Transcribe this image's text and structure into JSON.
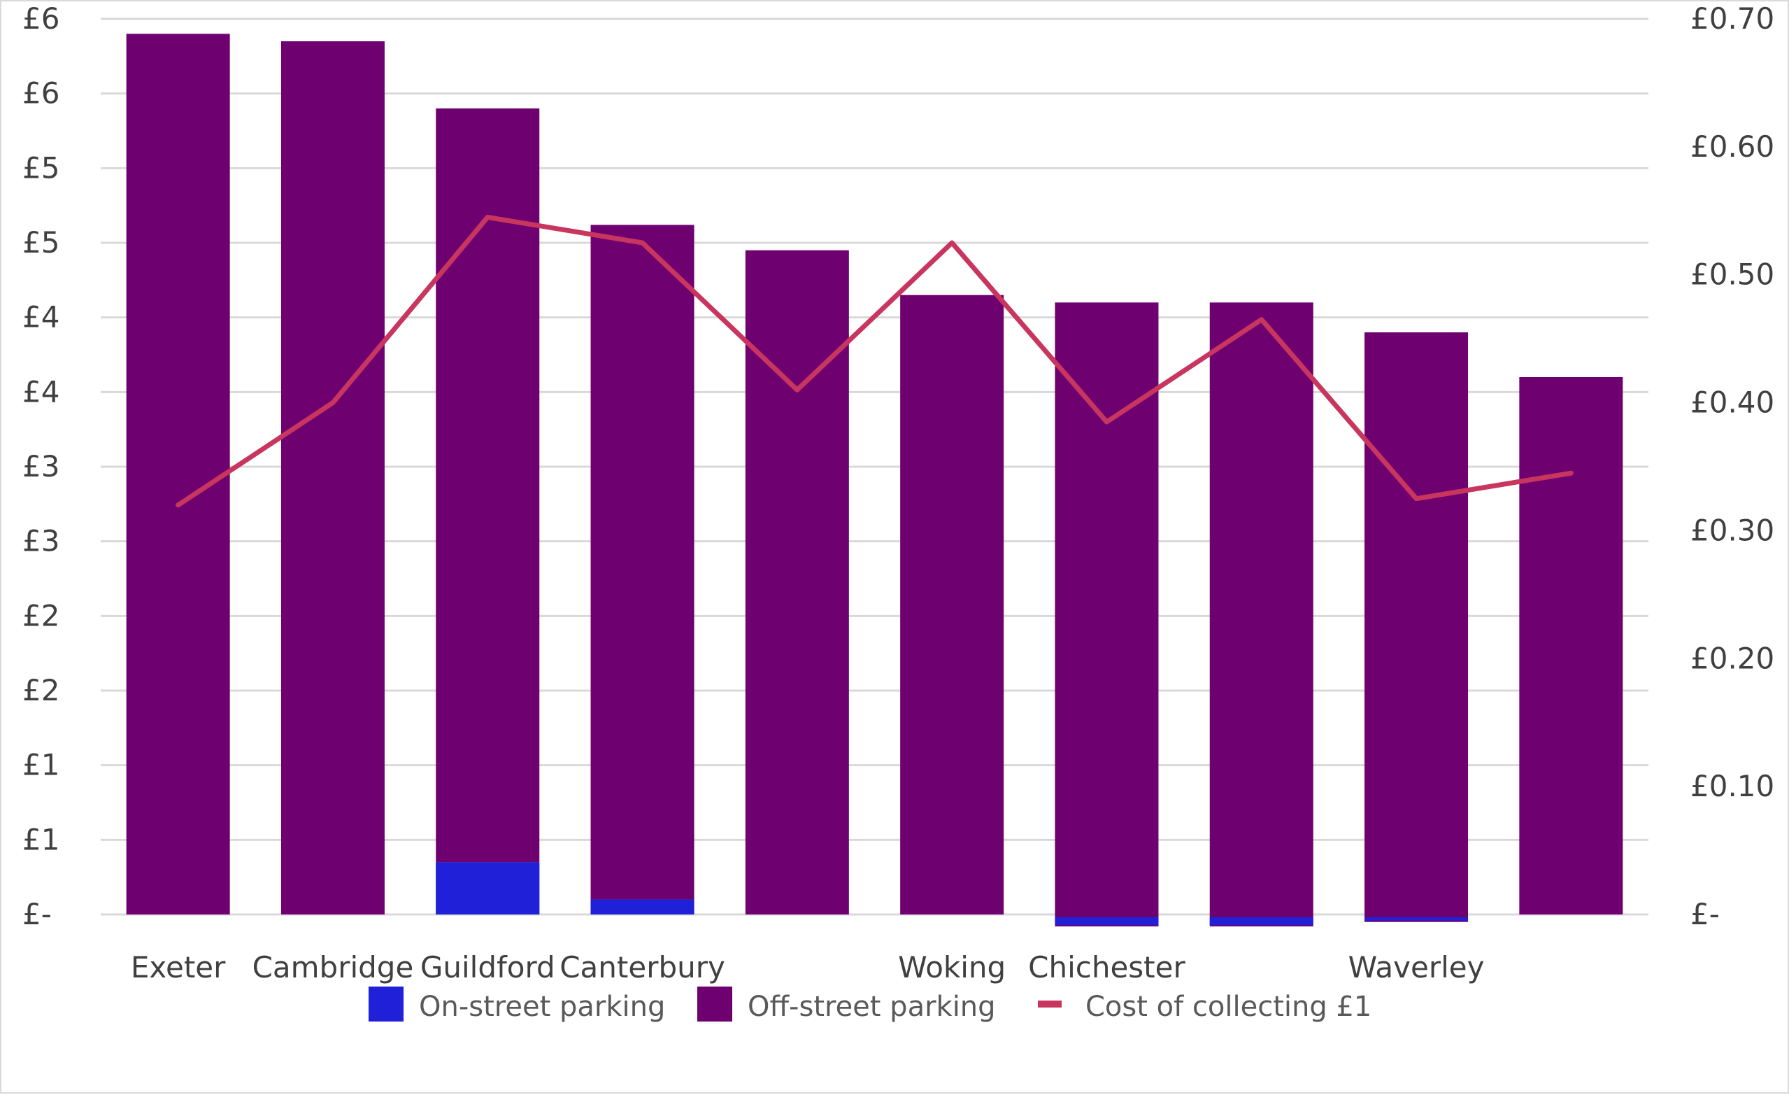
{
  "chart_data": {
    "type": "bar",
    "stacked": true,
    "categories": [
      "Exeter",
      "Cambridge",
      "Guildford",
      "Canterbury",
      "",
      "Woking",
      "Chichester",
      "",
      "Waverley",
      ""
    ],
    "series": [
      {
        "name": "On-street parking",
        "kind": "bar",
        "axis": "left",
        "color": "#2020d8",
        "values": [
          0,
          0,
          0.35,
          0.1,
          0,
          0,
          -0.08,
          -0.08,
          -0.05,
          0
        ]
      },
      {
        "name": "Off-street parking",
        "kind": "bar",
        "axis": "left",
        "color": "#6e0070",
        "values": [
          5.9,
          5.85,
          5.05,
          4.52,
          4.45,
          4.15,
          4.1,
          4.1,
          3.9,
          3.6
        ]
      },
      {
        "name": "Cost of collecting £1",
        "kind": "line",
        "axis": "right",
        "color": "#c8365f",
        "values": [
          0.32,
          0.4,
          0.545,
          0.525,
          0.41,
          0.525,
          0.385,
          0.465,
          0.325,
          0.345
        ]
      }
    ],
    "y_left": {
      "min": 0,
      "max": 6.0,
      "step": 0.5,
      "tick_labels": [
        "£-",
        "£1",
        "£1",
        "£2",
        "£2",
        "£3",
        "£3",
        "£4",
        "£4",
        "£5",
        "£5",
        "£6",
        "£6"
      ]
    },
    "y_right": {
      "min": 0,
      "max": 0.7,
      "step": 0.1,
      "tick_labels": [
        "£-",
        "£0.10",
        "£0.20",
        "£0.30",
        "£0.40",
        "£0.50",
        "£0.60",
        "£0.70"
      ]
    },
    "grid": true,
    "legend_position": "bottom",
    "gridline_color": "#d9d9d9"
  }
}
